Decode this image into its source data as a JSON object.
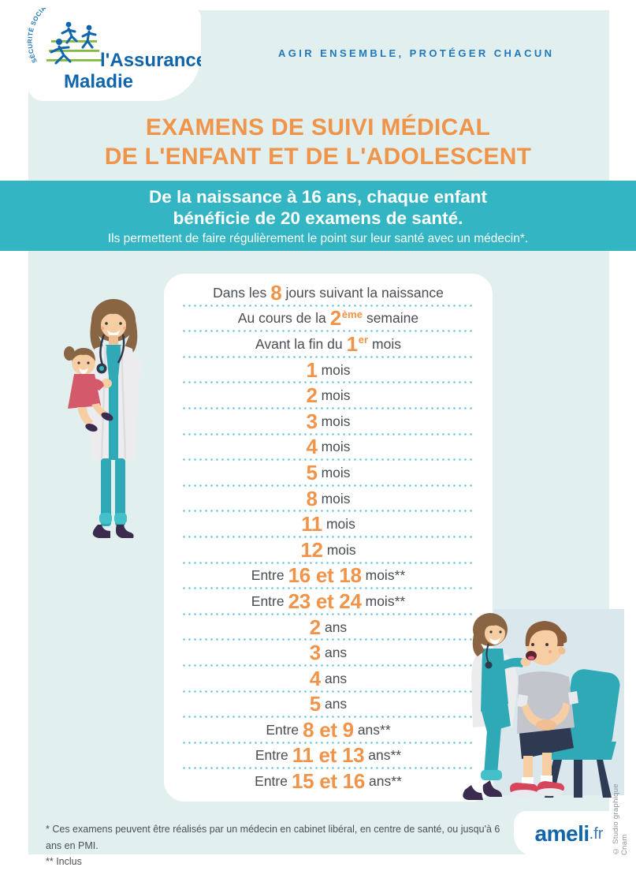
{
  "theme": {
    "bg_page": "#FFFFFF",
    "bg_tint": "#E1EFEF",
    "teal": "#33B5C3",
    "teal_light": "#56C4DA",
    "orange": "#F0944A",
    "blue": "#1065AC",
    "blue_tagline": "#2278BA",
    "text_dark": "#474D52",
    "gray_credit": "#8E9296"
  },
  "header": {
    "logo_arc_text": "SÉCURITÉ SOCIALE",
    "logo_line1": "l'Assurance",
    "logo_line2": "Maladie",
    "tagline": "AGIR ENSEMBLE, PROTÉGER CHACUN"
  },
  "title": {
    "line1": "EXAMENS DE SUIVI MÉDICAL",
    "line2": "DE L'ENFANT ET DE L'ADOLESCENT"
  },
  "banner": {
    "line1": "De la naissance à 16 ans, chaque enfant",
    "line2_prefix": "bénéficie de ",
    "line2_bold": "20 examens de santé.",
    "line3": "Ils permettent de faire régulièrement le point sur leur santé avec un médecin*."
  },
  "exams": {
    "rows": [
      {
        "pre": "Dans les",
        "num": "8",
        "sup": "",
        "post": "jours suivant la naissance"
      },
      {
        "pre": "Au cours de la",
        "num": "2",
        "sup": "ème",
        "post": "semaine"
      },
      {
        "pre": "Avant la fin du",
        "num": "1",
        "sup": "er",
        "post": "mois"
      },
      {
        "pre": "",
        "num": "1",
        "sup": "",
        "post": "mois"
      },
      {
        "pre": "",
        "num": "2",
        "sup": "",
        "post": "mois"
      },
      {
        "pre": "",
        "num": "3",
        "sup": "",
        "post": "mois"
      },
      {
        "pre": "",
        "num": "4",
        "sup": "",
        "post": "mois"
      },
      {
        "pre": "",
        "num": "5",
        "sup": "",
        "post": "mois"
      },
      {
        "pre": "",
        "num": "8",
        "sup": "",
        "post": "mois"
      },
      {
        "pre": "",
        "num": "11",
        "sup": "",
        "post": "mois"
      },
      {
        "pre": "",
        "num": "12",
        "sup": "",
        "post": "mois"
      },
      {
        "pre": "Entre",
        "num": "16 et 18",
        "sup": "",
        "post": "mois**"
      },
      {
        "pre": "Entre",
        "num": "23 et 24",
        "sup": "",
        "post": "mois**"
      },
      {
        "pre": "",
        "num": "2",
        "sup": "",
        "post": "ans"
      },
      {
        "pre": "",
        "num": "3",
        "sup": "",
        "post": "ans"
      },
      {
        "pre": "",
        "num": "4",
        "sup": "",
        "post": "ans"
      },
      {
        "pre": "",
        "num": "5",
        "sup": "",
        "post": "ans"
      },
      {
        "pre": "Entre",
        "num": "8 et 9",
        "sup": "",
        "post": "ans**"
      },
      {
        "pre": "Entre",
        "num": "11 et 13",
        "sup": "",
        "post": "ans**"
      },
      {
        "pre": "Entre",
        "num": "15 et 16",
        "sup": "",
        "post": "ans**"
      }
    ]
  },
  "footnotes": {
    "line1": "* Ces examens peuvent être réalisés par un médecin en cabinet libéral, en centre de santé, ou jusqu'à 6 ans en PMI.",
    "line2": "** Inclus"
  },
  "footer_logo": {
    "name": "ameli",
    "tld": ".fr"
  },
  "credit": "© Studio graphique Cnam"
}
